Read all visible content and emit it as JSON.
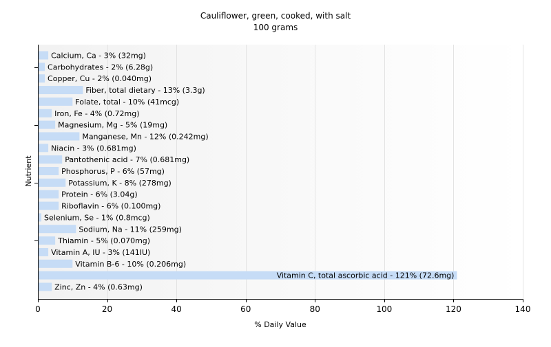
{
  "chart_data": {
    "type": "bar",
    "orientation": "horizontal",
    "title": "Cauliflower, green, cooked, with salt",
    "subtitle": "100 grams",
    "xlabel": "% Daily Value",
    "ylabel": "Nutrient",
    "xlim": [
      0,
      140
    ],
    "xticks": [
      0,
      20,
      40,
      60,
      80,
      100,
      120,
      140
    ],
    "grid": true,
    "legend": "none",
    "bar_color": "#c6dcf6",
    "categories": [
      "Calcium, Ca",
      "Carbohydrates",
      "Copper, Cu",
      "Fiber, total dietary",
      "Folate, total",
      "Iron, Fe",
      "Magnesium, Mg",
      "Manganese, Mn",
      "Niacin",
      "Pantothenic acid",
      "Phosphorus, P",
      "Potassium, K",
      "Protein",
      "Riboflavin",
      "Selenium, Se",
      "Sodium, Na",
      "Thiamin",
      "Vitamin A, IU",
      "Vitamin B-6",
      "Vitamin C, total ascorbic acid",
      "Zinc, Zn"
    ],
    "values": [
      3,
      2,
      2,
      13,
      10,
      4,
      5,
      12,
      3,
      7,
      6,
      8,
      6,
      6,
      1,
      11,
      5,
      3,
      10,
      121,
      4
    ],
    "labels": [
      "Calcium, Ca - 3% (32mg)",
      "Carbohydrates - 2% (6.28g)",
      "Copper, Cu - 2% (0.040mg)",
      "Fiber, total dietary - 13% (3.3g)",
      "Folate, total - 10% (41mcg)",
      "Iron, Fe - 4% (0.72mg)",
      "Magnesium, Mg - 5% (19mg)",
      "Manganese, Mn - 12% (0.242mg)",
      "Niacin - 3% (0.681mg)",
      "Pantothenic acid - 7% (0.681mg)",
      "Phosphorus, P - 6% (57mg)",
      "Potassium, K - 8% (278mg)",
      "Protein - 6% (3.04g)",
      "Riboflavin - 6% (0.100mg)",
      "Selenium, Se - 1% (0.8mcg)",
      "Sodium, Na - 11% (259mg)",
      "Thiamin - 5% (0.070mg)",
      "Vitamin A, IU - 3% (141IU)",
      "Vitamin B-6 - 10% (0.206mg)",
      "Vitamin C, total ascorbic acid - 121% (72.6mg)",
      "Zinc, Zn - 4% (0.63mg)"
    ]
  }
}
